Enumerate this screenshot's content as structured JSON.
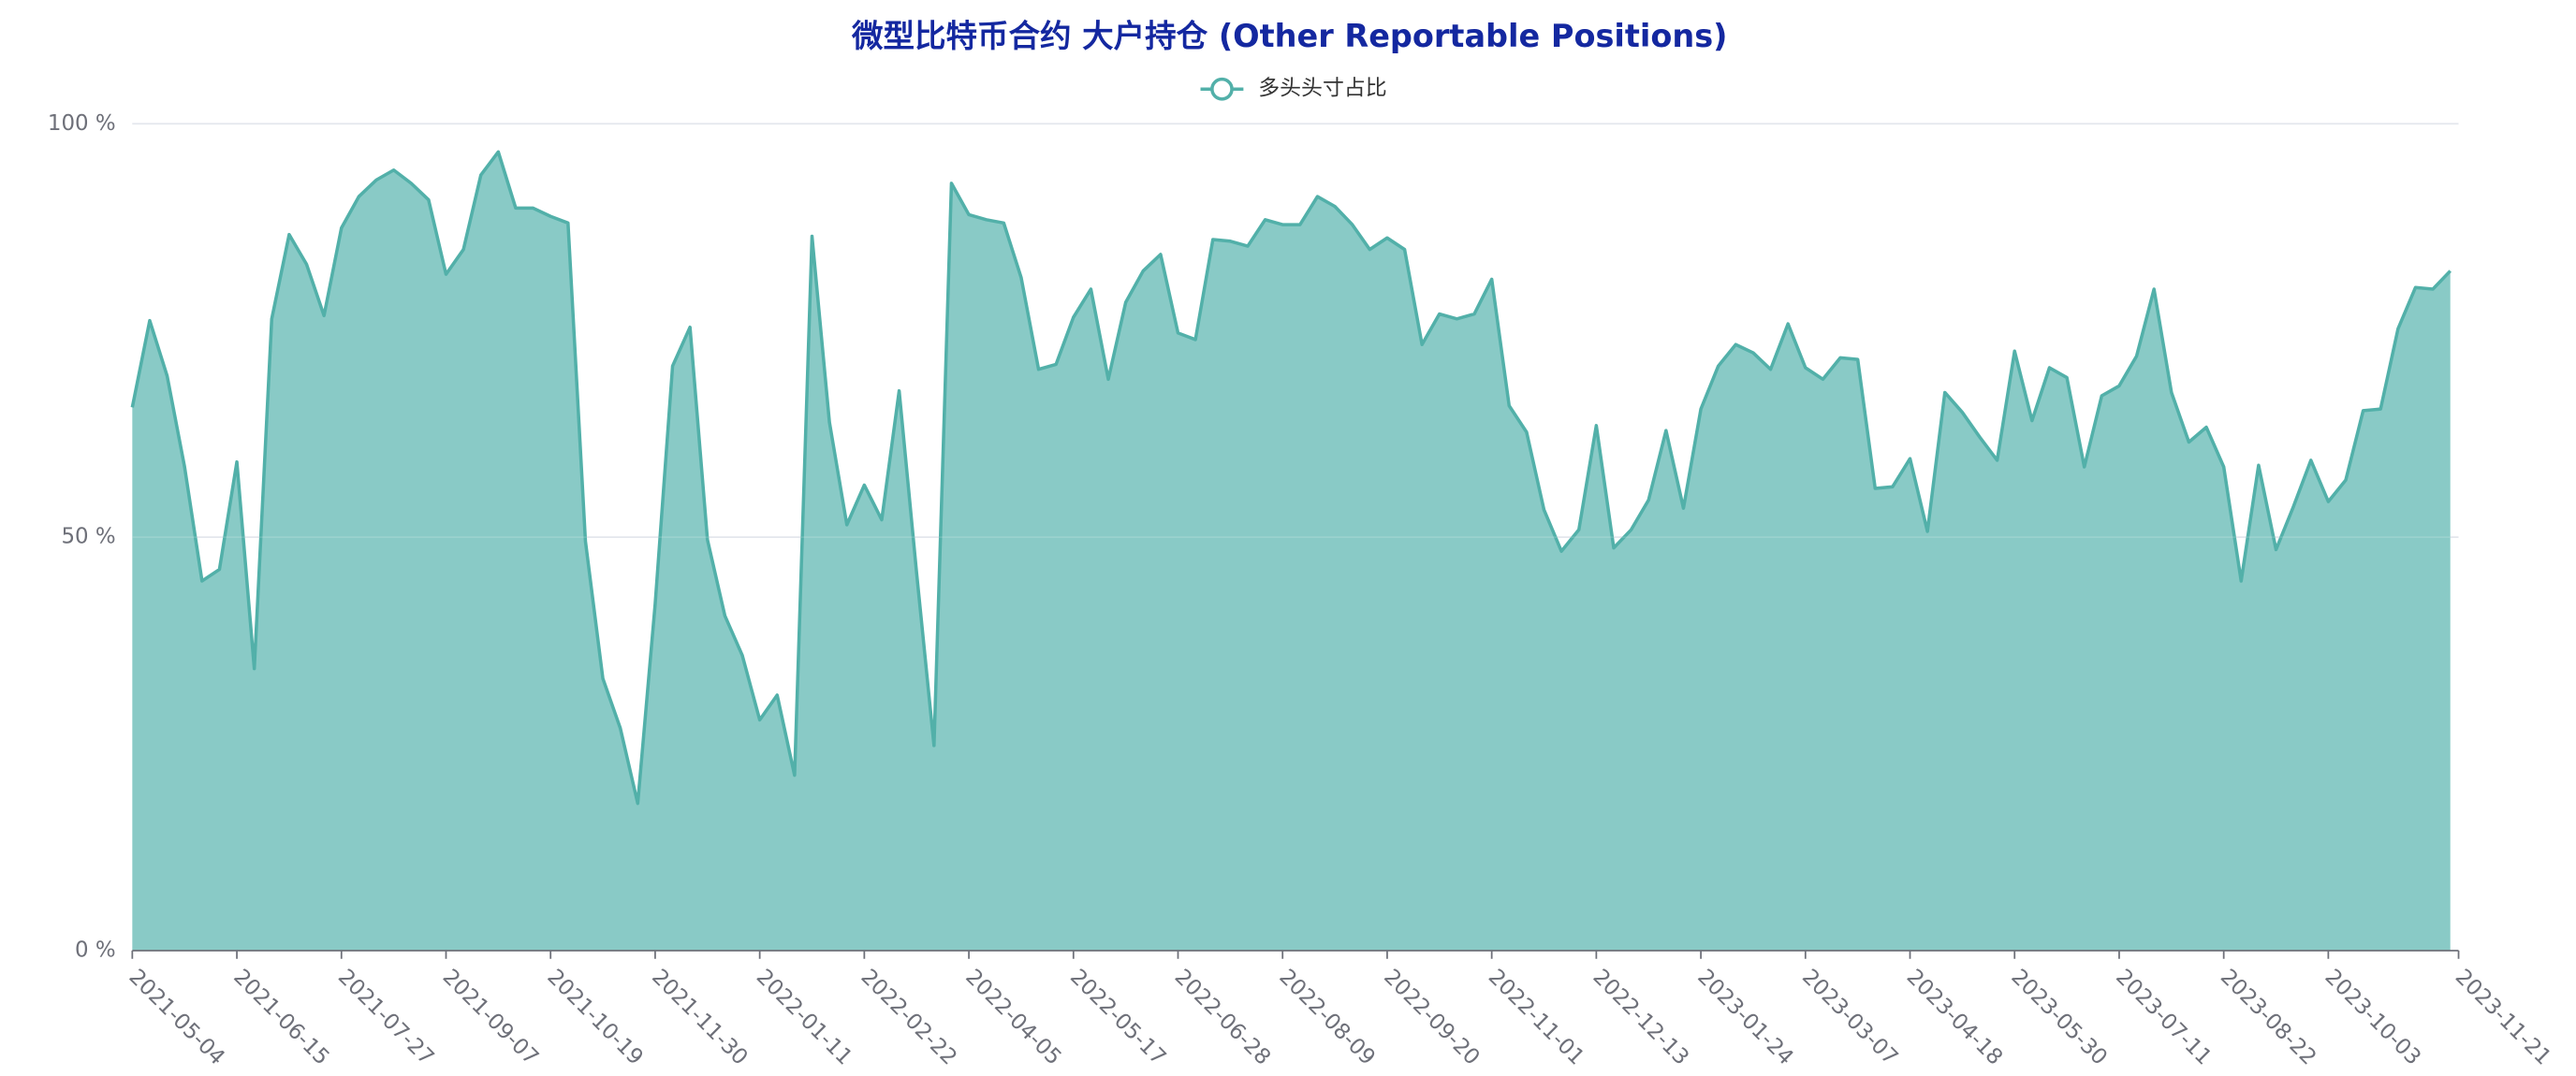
{
  "chart_data": {
    "type": "area",
    "title": "微型比特币合约 大户持仓 (Other Reportable Positions)",
    "categories": [
      "2021-05-04",
      null,
      null,
      null,
      null,
      null,
      "2021-06-15",
      null,
      null,
      null,
      null,
      null,
      "2021-07-27",
      null,
      null,
      null,
      null,
      null,
      "2021-09-07",
      null,
      null,
      null,
      null,
      null,
      "2021-10-19",
      null,
      null,
      null,
      null,
      null,
      "2021-11-30",
      null,
      null,
      null,
      null,
      null,
      "2022-01-11",
      null,
      null,
      null,
      null,
      null,
      "2022-02-22",
      null,
      null,
      null,
      null,
      null,
      "2022-04-05",
      null,
      null,
      null,
      null,
      null,
      "2022-05-17",
      null,
      null,
      null,
      null,
      null,
      "2022-06-28",
      null,
      null,
      null,
      null,
      null,
      "2022-08-09",
      null,
      null,
      null,
      null,
      null,
      "2022-09-20",
      null,
      null,
      null,
      null,
      null,
      "2022-11-01",
      null,
      null,
      null,
      null,
      null,
      "2022-12-13",
      null,
      null,
      null,
      null,
      null,
      "2023-01-24",
      null,
      null,
      null,
      null,
      null,
      "2023-03-07",
      null,
      null,
      null,
      null,
      null,
      "2023-04-18",
      null,
      null,
      null,
      null,
      null,
      "2023-05-30",
      null,
      null,
      null,
      null,
      null,
      "2023-07-11",
      null,
      null,
      null,
      null,
      null,
      "2023-08-22",
      null,
      null,
      null,
      null,
      null,
      "2023-10-03",
      null,
      null,
      null,
      null,
      null,
      null,
      "2023-11-21"
    ],
    "series": [
      {
        "name": "多头头寸占比",
        "color": "#52b0a9",
        "fill": "#89cac6",
        "values": [
          65.7,
          76.2,
          69.5,
          58.5,
          44.7,
          46.1,
          59.1,
          34.1,
          76.4,
          86.6,
          83.0,
          76.8,
          87.4,
          91.2,
          93.2,
          94.4,
          92.8,
          90.8,
          81.8,
          84.8,
          93.8,
          96.6,
          89.8,
          89.8,
          88.8,
          88.0,
          49.5,
          32.9,
          26.9,
          17.8,
          41.9,
          70.7,
          75.4,
          49.7,
          40.5,
          35.7,
          27.9,
          30.9,
          21.2,
          86.4,
          63.9,
          51.5,
          56.3,
          52.1,
          67.7,
          45.7,
          24.8,
          92.8,
          89.0,
          88.4,
          88.0,
          81.4,
          70.3,
          70.9,
          76.6,
          80.0,
          69.1,
          78.4,
          82.2,
          84.2,
          74.7,
          73.9,
          86.0,
          85.8,
          85.2,
          88.4,
          87.8,
          87.8,
          91.2,
          90.0,
          87.8,
          84.8,
          86.2,
          84.8,
          73.3,
          77.0,
          76.4,
          77.0,
          81.2,
          65.9,
          62.7,
          53.3,
          48.3,
          50.9,
          63.5,
          48.7,
          50.9,
          54.5,
          62.9,
          53.5,
          65.5,
          70.7,
          73.3,
          72.3,
          70.3,
          75.8,
          70.5,
          69.1,
          71.7,
          71.5,
          55.9,
          56.1,
          59.5,
          50.7,
          67.5,
          65.1,
          62.1,
          59.3,
          72.5,
          64.1,
          70.5,
          69.3,
          58.5,
          67.1,
          68.3,
          71.9,
          80.0,
          67.5,
          61.5,
          63.3,
          58.5,
          44.7,
          58.7,
          48.5,
          53.7,
          59.3,
          54.3,
          56.9,
          65.3,
          65.5,
          75.2,
          80.2,
          80.0,
          82.2
        ]
      }
    ],
    "ylim": [
      0,
      100
    ],
    "yticks": [
      {
        "value": 0,
        "label": "0 %"
      },
      {
        "value": 50,
        "label": "50 %"
      },
      {
        "value": 100,
        "label": "100 %"
      }
    ],
    "grid": true,
    "legend": "top"
  }
}
